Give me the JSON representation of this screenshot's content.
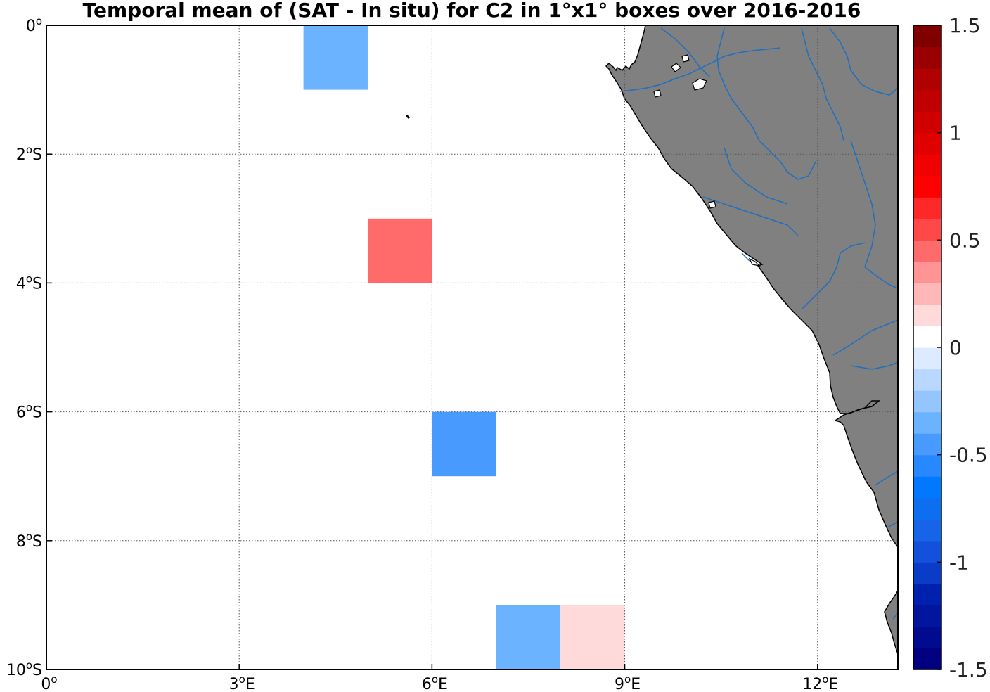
{
  "chart_data": {
    "type": "heatmap",
    "title": "Temporal mean of (SAT - In situ) for C2 in 1°x1° boxes over 2016-2016",
    "x_range": [
      0,
      13.25
    ],
    "y_range": [
      -10,
      0
    ],
    "x_ticks": [
      {
        "value": 0,
        "label": "0",
        "sup": "o",
        "suffix": ""
      },
      {
        "value": 3,
        "label": "3",
        "sup": "o",
        "suffix": "E"
      },
      {
        "value": 6,
        "label": "6",
        "sup": "o",
        "suffix": "E"
      },
      {
        "value": 9,
        "label": "9",
        "sup": "o",
        "suffix": "E"
      },
      {
        "value": 12,
        "label": "12",
        "sup": "o",
        "suffix": "E"
      }
    ],
    "y_ticks": [
      {
        "value": 0,
        "label": "0",
        "sup": "o",
        "suffix": ""
      },
      {
        "value": -2,
        "label": "2",
        "sup": "o",
        "suffix": "S"
      },
      {
        "value": -4,
        "label": "4",
        "sup": "o",
        "suffix": "S"
      },
      {
        "value": -6,
        "label": "6",
        "sup": "o",
        "suffix": "S"
      },
      {
        "value": -8,
        "label": "8",
        "sup": "o",
        "suffix": "S"
      },
      {
        "value": -10,
        "label": "10",
        "sup": "o",
        "suffix": "S"
      }
    ],
    "grid": true,
    "land_color": "#808080",
    "river_color": "#1f6fc0",
    "cells": [
      {
        "lon": 4,
        "lat": -1,
        "value": -0.35
      },
      {
        "lon": 5,
        "lat": -4,
        "value": 0.4
      },
      {
        "lon": 6,
        "lat": -7,
        "value": -0.5
      },
      {
        "lon": 7,
        "lat": -10,
        "value": -0.35
      },
      {
        "lon": 8,
        "lat": -10,
        "value": 0.15
      }
    ],
    "colorbar": {
      "range": [
        -1.5,
        1.5
      ],
      "levels": 30,
      "tick_labels": [
        "1.5",
        "1",
        "0.5",
        "0",
        "-0.5",
        "-1",
        "-1.5"
      ],
      "tick_values": [
        1.5,
        1,
        0.5,
        0,
        -0.5,
        -1,
        -1.5
      ],
      "colors": [
        "#000080",
        "#000b8f",
        "#00169e",
        "#0021ad",
        "#0b3cc8",
        "#1350db",
        "#1864e8",
        "#0e6ef0",
        "#0078ff",
        "#2888ff",
        "#489aff",
        "#6bb3ff",
        "#94c5ff",
        "#b8d8ff",
        "#dcebff",
        "#ffffff",
        "#ffdada",
        "#ffb7b7",
        "#ff9494",
        "#ff6b6b",
        "#ff4848",
        "#ff2828",
        "#ff0000",
        "#f00000",
        "#e00000",
        "#d00000",
        "#c00000",
        "#b00000",
        "#9a0000",
        "#800000"
      ]
    }
  }
}
